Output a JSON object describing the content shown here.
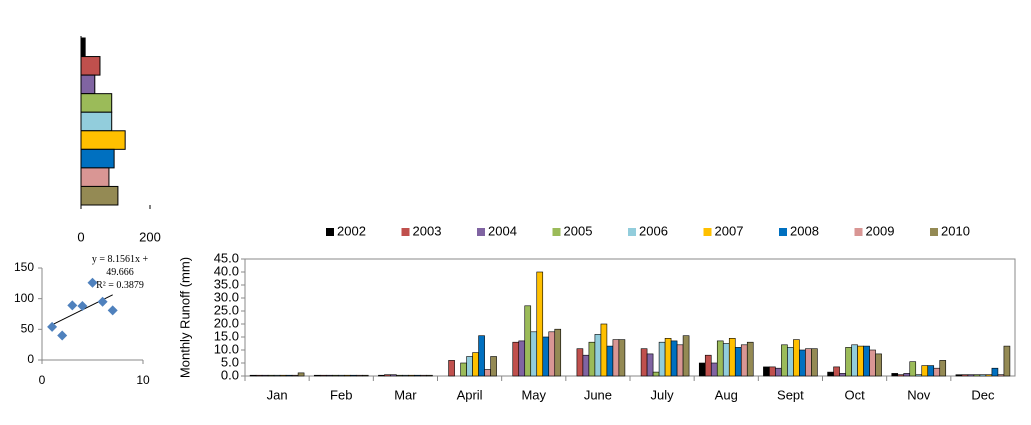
{
  "chart_data": [
    {
      "type": "bar",
      "orientation": "horizontal",
      "values": [
        12,
        55,
        40,
        89,
        89,
        128,
        96,
        81,
        107
      ],
      "colors": [
        "#000000",
        "#c0504d",
        "#8064a2",
        "#9bbb59",
        "#92cddc",
        "#ffc000",
        "#0070c0",
        "#d99694",
        "#948a54"
      ],
      "xlim": [
        0,
        200
      ],
      "xticks": [
        0,
        200
      ]
    },
    {
      "type": "scatter",
      "x": [
        1,
        2,
        3,
        4,
        5,
        6,
        7
      ],
      "y": [
        54,
        40,
        89,
        88,
        126,
        95,
        81
      ],
      "color": "#4f81bd",
      "trendline": true,
      "annotations": [
        "y = 8.1561x + 49.666",
        "R² = 0.3879"
      ],
      "xlim": [
        0,
        10
      ],
      "xticks": [
        0,
        10
      ],
      "ylim": [
        0,
        150
      ],
      "yticks": [
        0,
        50,
        100,
        150
      ]
    },
    {
      "type": "grouped-bar",
      "y_label": "Monthly  Runoff (mm)",
      "categories": [
        "Jan",
        "Feb",
        "Mar",
        "April",
        "May",
        "June",
        "July",
        "Aug",
        "Sept",
        "Oct",
        "Nov",
        "Dec"
      ],
      "series": [
        {
          "name": "2002",
          "color": "#000000",
          "values": [
            0.3,
            0.3,
            0.3,
            0,
            0,
            0,
            0,
            5,
            3.5,
            1.5,
            1,
            0.5
          ]
        },
        {
          "name": "2003",
          "color": "#c0504d",
          "values": [
            0.3,
            0.3,
            0.5,
            6,
            13,
            10.5,
            10.5,
            8,
            3.5,
            3.5,
            0.5,
            0.5
          ]
        },
        {
          "name": "2004",
          "color": "#8064a2",
          "values": [
            0.3,
            0.3,
            0.5,
            0,
            13.5,
            8,
            8.5,
            5,
            3,
            1,
            1,
            0.5
          ]
        },
        {
          "name": "2005",
          "color": "#9bbb59",
          "values": [
            0.3,
            0.3,
            0.3,
            5,
            27,
            13,
            1.5,
            13.5,
            12,
            11,
            5.5,
            0.5
          ]
        },
        {
          "name": "2006",
          "color": "#92cddc",
          "values": [
            0.3,
            0.3,
            0.3,
            7.5,
            17,
            16,
            13,
            12.5,
            11,
            12,
            0.5,
            0.5
          ]
        },
        {
          "name": "2007",
          "color": "#ffc000",
          "values": [
            0.3,
            0.3,
            0.3,
            9,
            40,
            20,
            14.5,
            14.5,
            14,
            11.5,
            4,
            0.5
          ]
        },
        {
          "name": "2008",
          "color": "#0070c0",
          "values": [
            0.3,
            0.3,
            0.3,
            15.5,
            15,
            11.5,
            13.5,
            11,
            10,
            11.5,
            4,
            3
          ]
        },
        {
          "name": "2009",
          "color": "#d99694",
          "values": [
            0.3,
            0.3,
            0.3,
            2.5,
            17,
            14,
            12,
            12,
            10.5,
            10,
            3,
            0.5
          ]
        },
        {
          "name": "2010",
          "color": "#948a54",
          "values": [
            1.2,
            0.3,
            0.3,
            7.5,
            18,
            14,
            15.5,
            13,
            10.5,
            8.5,
            6,
            11.5
          ]
        }
      ],
      "ylim": [
        0,
        45
      ],
      "yticks": [
        {
          "value": 0,
          "label": "0.0"
        },
        {
          "value": 5,
          "label": "5.0"
        },
        {
          "value": 10,
          "label": "10.0"
        },
        {
          "value": 15,
          "label": "15.0"
        },
        {
          "value": 20,
          "label": "20.0"
        },
        {
          "value": 25,
          "label": "25.0"
        },
        {
          "value": 30,
          "label": "30.0"
        },
        {
          "value": 35,
          "label": "35.0"
        },
        {
          "value": 40,
          "label": "40.0"
        },
        {
          "value": 45,
          "label": "45.0"
        }
      ],
      "legend": "top"
    }
  ]
}
